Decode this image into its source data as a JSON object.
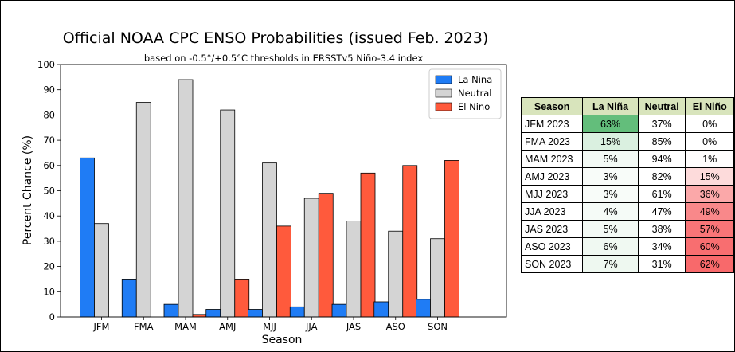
{
  "chart_data": {
    "type": "bar",
    "title": "Official NOAA CPC ENSO Probabilities (issued Feb. 2023)",
    "subtitle": "based on -0.5°/+0.5°C thresholds in ERSSTv5 Niño-3.4 index",
    "xlabel": "Season",
    "ylabel": "Percent Chance (%)",
    "ylim": [
      0,
      100
    ],
    "yticks": [
      0,
      10,
      20,
      30,
      40,
      50,
      60,
      70,
      80,
      90,
      100
    ],
    "grid": false,
    "legend_position": "top-right",
    "categories": [
      "JFM",
      "FMA",
      "MAM",
      "AMJ",
      "MJJ",
      "JJA",
      "JAS",
      "ASO",
      "SON"
    ],
    "series": [
      {
        "name": "La Nina",
        "color": "#1f7cf5",
        "values": [
          63,
          15,
          5,
          3,
          3,
          4,
          5,
          6,
          7
        ]
      },
      {
        "name": "Neutral",
        "color": "#d4d4d4",
        "values": [
          37,
          85,
          94,
          82,
          61,
          47,
          38,
          34,
          31
        ]
      },
      {
        "name": "El Nino",
        "color": "#ff5a3c",
        "values": [
          0,
          0,
          1,
          15,
          36,
          49,
          57,
          60,
          62
        ]
      }
    ]
  },
  "table": {
    "headers": [
      "Season",
      "La Niña",
      "Neutral",
      "El Niño"
    ],
    "header_color": "#d8e4bc",
    "rows": [
      [
        "JFM 2023",
        "63%",
        "37%",
        "0%"
      ],
      [
        "FMA 2023",
        "15%",
        "85%",
        "0%"
      ],
      [
        "MAM 2023",
        "5%",
        "94%",
        "1%"
      ],
      [
        "AMJ 2023",
        "3%",
        "82%",
        "15%"
      ],
      [
        "MJJ 2023",
        "3%",
        "61%",
        "36%"
      ],
      [
        "JJA 2023",
        "4%",
        "47%",
        "49%"
      ],
      [
        "JAS 2023",
        "5%",
        "38%",
        "57%"
      ],
      [
        "ASO 2023",
        "6%",
        "34%",
        "60%"
      ],
      [
        "SON 2023",
        "7%",
        "31%",
        "62%"
      ]
    ],
    "lanina_scale_color": "#63be7b",
    "elnino_scale_color": "#f8696b"
  }
}
